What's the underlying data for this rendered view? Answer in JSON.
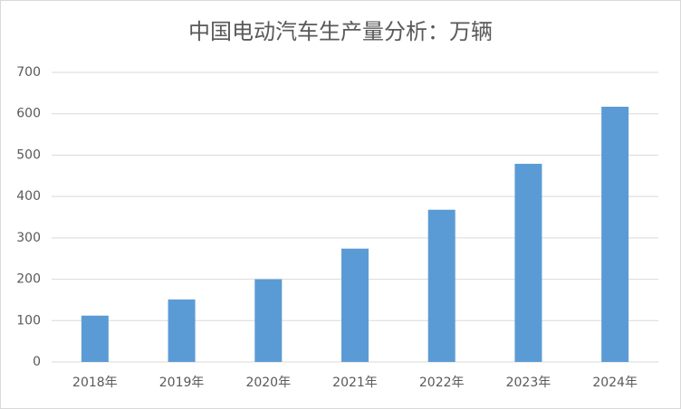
{
  "chart_data": {
    "type": "bar",
    "title": "中国电动汽车生产量分析：万辆",
    "categories": [
      "2018年",
      "2019年",
      "2020年",
      "2021年",
      "2022年",
      "2023年",
      "2024年"
    ],
    "values": [
      112,
      151,
      200,
      274,
      368,
      479,
      617
    ],
    "color": "#5b9bd5",
    "ylim": [
      0,
      700
    ],
    "yticks": [
      0,
      100,
      200,
      300,
      400,
      500,
      600,
      700
    ],
    "grid": true
  }
}
